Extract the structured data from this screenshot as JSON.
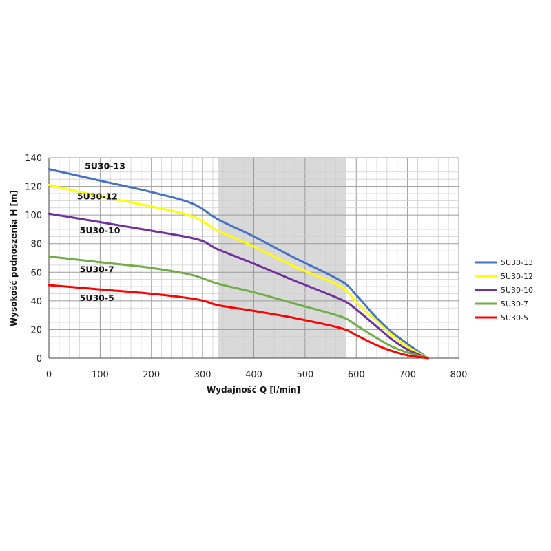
{
  "chart_data": {
    "type": "line",
    "title": "",
    "xlabel": "Wydajność Q [l/min]",
    "ylabel": "Wysokość podnoszenia H [m]",
    "xlim": [
      0,
      800
    ],
    "ylim": [
      0,
      140
    ],
    "x_ticks": [
      0,
      100,
      200,
      300,
      400,
      500,
      600,
      700,
      800
    ],
    "y_ticks": [
      0,
      20,
      40,
      60,
      80,
      100,
      120,
      140
    ],
    "grid": true,
    "legend_position": "right",
    "highlight_band": {
      "x_from": 330,
      "x_to": 580,
      "color": "#d9d9d9"
    },
    "series": [
      {
        "name": "5U30-13",
        "color": "#4472c4",
        "x": [
          0,
          100,
          200,
          280,
          330,
          400,
          480,
          570,
          600,
          640,
          670,
          700,
          740
        ],
        "y": [
          132,
          124,
          116,
          108,
          97,
          85,
          70,
          54,
          44,
          28,
          18,
          10,
          0
        ]
      },
      {
        "name": "5U30-12",
        "color": "#ffff00",
        "x": [
          0,
          100,
          200,
          280,
          330,
          400,
          480,
          570,
          600,
          640,
          670,
          700,
          740
        ],
        "y": [
          121,
          113,
          106,
          99,
          89,
          78,
          64,
          50,
          39,
          26,
          16,
          8,
          0
        ]
      },
      {
        "name": "5U30-10",
        "color": "#7030a0",
        "x": [
          0,
          100,
          200,
          290,
          330,
          400,
          480,
          570,
          600,
          640,
          670,
          700,
          740
        ],
        "y": [
          101,
          95,
          89,
          83,
          76,
          66,
          54,
          41,
          34,
          22,
          13,
          6,
          0
        ]
      },
      {
        "name": "5U30-7",
        "color": "#70ad47",
        "x": [
          0,
          100,
          200,
          280,
          330,
          400,
          480,
          570,
          600,
          640,
          670,
          700,
          740
        ],
        "y": [
          71,
          67,
          63,
          58,
          52,
          46,
          38,
          29,
          23,
          14,
          8,
          4,
          0
        ]
      },
      {
        "name": "5U30-5",
        "color": "#ff0000",
        "x": [
          0,
          100,
          200,
          290,
          330,
          400,
          480,
          570,
          600,
          640,
          670,
          700,
          740
        ],
        "y": [
          51,
          48,
          45,
          41,
          37,
          33,
          28,
          21,
          16,
          9,
          5,
          2,
          0
        ]
      }
    ],
    "annotations": [
      {
        "text": "5U30-13",
        "x": 70,
        "y": 132
      },
      {
        "text": "5U30-12",
        "x": 55,
        "y": 111
      },
      {
        "text": "5U30-10",
        "x": 60,
        "y": 87
      },
      {
        "text": "5U30-7",
        "x": 60,
        "y": 60
      },
      {
        "text": "5U30-5",
        "x": 60,
        "y": 40
      }
    ]
  }
}
